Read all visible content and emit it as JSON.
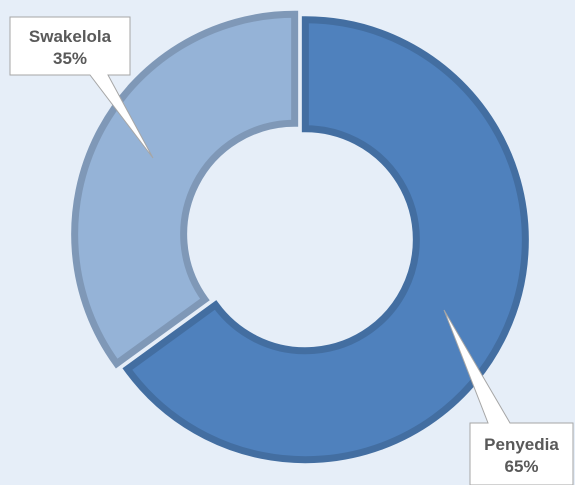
{
  "chart_data": {
    "type": "pie",
    "title": "",
    "slices": [
      {
        "name": "Penyedia",
        "value": 65,
        "percent_label": "65%",
        "color": "#4f81bd"
      },
      {
        "name": "Swakelola",
        "value": 35,
        "percent_label": "35%",
        "color": "#95b3d7"
      }
    ],
    "background": "#e6eef8",
    "legend": "none"
  }
}
